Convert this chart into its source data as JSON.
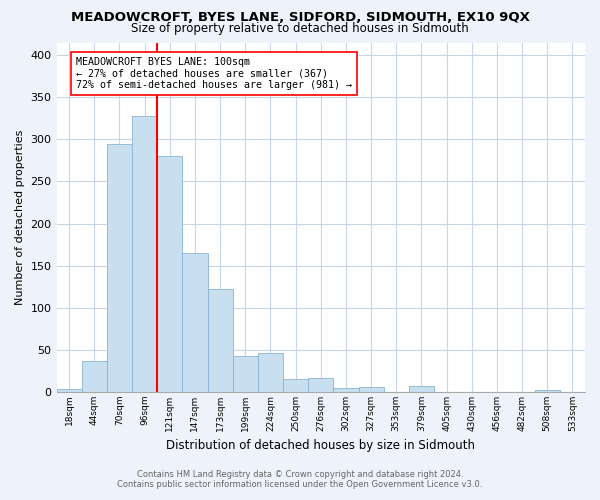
{
  "title": "MEADOWCROFT, BYES LANE, SIDFORD, SIDMOUTH, EX10 9QX",
  "subtitle": "Size of property relative to detached houses in Sidmouth",
  "xlabel": "Distribution of detached houses by size in Sidmouth",
  "ylabel": "Number of detached properties",
  "bar_color": "#c8dff0",
  "bar_edge_color": "#8ab4d4",
  "bin_labels": [
    "18sqm",
    "44sqm",
    "70sqm",
    "96sqm",
    "121sqm",
    "147sqm",
    "173sqm",
    "199sqm",
    "224sqm",
    "250sqm",
    "276sqm",
    "302sqm",
    "327sqm",
    "353sqm",
    "379sqm",
    "405sqm",
    "430sqm",
    "456sqm",
    "482sqm",
    "508sqm",
    "533sqm"
  ],
  "bar_values": [
    4,
    37,
    295,
    328,
    280,
    165,
    122,
    43,
    46,
    16,
    17,
    5,
    6,
    0,
    7,
    0,
    0,
    0,
    0,
    2,
    0
  ],
  "ylim": [
    0,
    415
  ],
  "yticks": [
    0,
    50,
    100,
    150,
    200,
    250,
    300,
    350,
    400
  ],
  "property_line_bin_index": 4,
  "annotation_title": "MEADOWCROFT BYES LANE: 100sqm",
  "annotation_line1": "← 27% of detached houses are smaller (367)",
  "annotation_line2": "72% of semi-detached houses are larger (981) →",
  "footer_line1": "Contains HM Land Registry data © Crown copyright and database right 2024.",
  "footer_line2": "Contains public sector information licensed under the Open Government Licence v3.0.",
  "background_color": "#eef2fa",
  "plot_bg_color": "#ffffff",
  "grid_color": "#c8d4e8"
}
